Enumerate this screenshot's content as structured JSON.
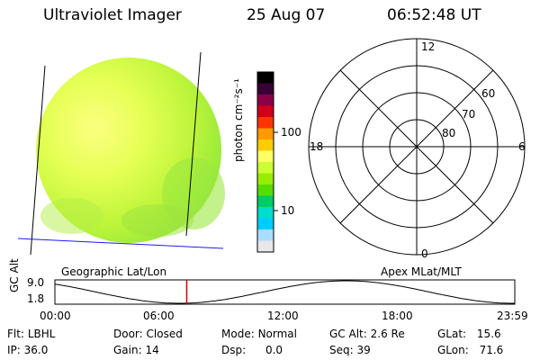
{
  "header": {
    "instrument": "Ultraviolet Imager",
    "date": "25 Aug 07",
    "time": "06:52:48 UT"
  },
  "colorbar": {
    "label": "photon cm⁻²s⁻¹",
    "ticks": [
      "100",
      "10"
    ],
    "colors": [
      "#000000",
      "#3a0038",
      "#8b0046",
      "#d0001a",
      "#ff3300",
      "#ff9900",
      "#ffcc00",
      "#ffff66",
      "#ccff33",
      "#99ee00",
      "#55dd00",
      "#00cc66",
      "#00ddcc",
      "#00ccff",
      "#aaddff",
      "#e8e8e8"
    ]
  },
  "polar": {
    "mlt_labels": {
      "top": "12",
      "left": "18",
      "right": "6",
      "bottom": "0"
    },
    "lat_labels": [
      "60",
      "70",
      "80"
    ]
  },
  "coords": {
    "geographic": "Geographic Lat/Lon",
    "apex": "Apex MLat/MLT"
  },
  "orbit": {
    "axis_label": "GC Alt",
    "y_ticks": [
      "9.0",
      "1.8"
    ],
    "x_ticks": [
      "00:00",
      "06:00",
      "12:00",
      "18:00",
      "23:59"
    ],
    "current_hour": 6.88,
    "curve_color": "#000000",
    "marker_color": "#cc0000"
  },
  "info": {
    "row1": [
      {
        "label": "Flt:",
        "value": "LBHL"
      },
      {
        "label": "Door:",
        "value": "Closed"
      },
      {
        "label": "Mode:",
        "value": "Normal"
      },
      {
        "label": "GC Alt:",
        "value": "2.6 Re"
      },
      {
        "label": "GLat:",
        "value": "15.6"
      }
    ],
    "row2": [
      {
        "label": "IP:",
        "value": "36.0"
      },
      {
        "label": "Gain:",
        "value": "14"
      },
      {
        "label": "Dsp:",
        "value": "0.0"
      },
      {
        "label": "Seq:",
        "value": "39"
      },
      {
        "label": "GLon:",
        "value": "71.6"
      }
    ]
  }
}
